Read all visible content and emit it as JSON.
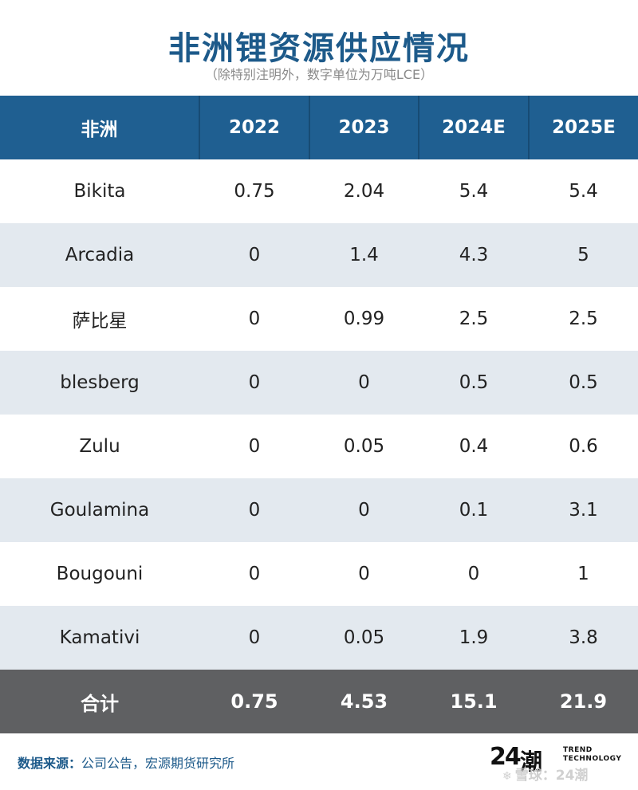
{
  "title": "非洲锂资源供应情况",
  "subtitle": "（除特别注明外，数字单位为万吨LCE）",
  "table": {
    "headers": [
      "非洲",
      "2022",
      "2023",
      "2024E",
      "2025E"
    ],
    "rows": [
      [
        "Bikita",
        "0.75",
        "2.04",
        "5.4",
        "5.4"
      ],
      [
        "Arcadia",
        "0",
        "1.4",
        "4.3",
        "5"
      ],
      [
        "萨比星",
        "0",
        "0.99",
        "2.5",
        "2.5"
      ],
      [
        "blesberg",
        "0",
        "0",
        "0.5",
        "0.5"
      ],
      [
        "Zulu",
        "0",
        "0.05",
        "0.4",
        "0.6"
      ],
      [
        "Goulamina",
        "0",
        "0",
        "0.1",
        "3.1"
      ],
      [
        "Bougouni",
        "0",
        "0",
        "0",
        "1"
      ],
      [
        "Kamativi",
        "0",
        "0.05",
        "1.9",
        "3.8"
      ]
    ],
    "total": [
      "合计",
      "0.75",
      "4.53",
      "15.1",
      "21.9"
    ]
  },
  "footer": {
    "source_label": "数据来源：",
    "source_text": "公司公告，宏源期货研究所"
  },
  "logo": {
    "number": "24",
    "chinese": "潮",
    "english_line1": "TREND",
    "english_line2": "TECHNOLOGY"
  },
  "watermark": {
    "icon": "snowball-icon",
    "text": "雪球：24潮"
  },
  "colors": {
    "title": "#1d5a8a",
    "header_bg": "#1f5f91",
    "row_alt_bg": "#e3e9ef",
    "total_bg": "#5f6062"
  }
}
